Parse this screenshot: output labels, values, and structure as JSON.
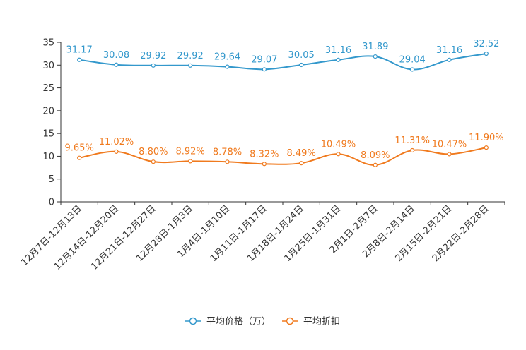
{
  "chart_data": {
    "type": "line",
    "categories": [
      "12月7日-12月13日",
      "12月14日-12月20日",
      "12月21日-12月27日",
      "12月28日-1月3日",
      "1月4日-1月10日",
      "1月11日-1月17日",
      "1月18日-1月24日",
      "1月25日-1月31日",
      "2月1日-2月7日",
      "2月8日-2月14日",
      "2月15日-2月21日",
      "2月22日-2月28日"
    ],
    "ylim": [
      0,
      35
    ],
    "yticks": [
      0,
      5,
      10,
      15,
      20,
      25,
      30,
      35
    ],
    "grid": false,
    "legend_position": "bottom-center",
    "series": [
      {
        "name": "平均价格（万）",
        "color": "#3398CC",
        "values": [
          31.17,
          30.08,
          29.92,
          29.92,
          29.64,
          29.07,
          30.05,
          31.16,
          31.89,
          29.04,
          31.16,
          32.52
        ],
        "labels": [
          "31.17",
          "30.08",
          "29.92",
          "29.92",
          "29.64",
          "29.07",
          "30.05",
          "31.16",
          "31.89",
          "29.04",
          "31.16",
          "32.52"
        ]
      },
      {
        "name": "平均折扣",
        "color": "#F07A1E",
        "values": [
          9.65,
          11.02,
          8.8,
          8.92,
          8.78,
          8.32,
          8.49,
          10.49,
          8.09,
          11.31,
          10.47,
          11.9
        ],
        "labels": [
          "9.65%",
          "11.02%",
          "8.80%",
          "8.92%",
          "8.78%",
          "8.32%",
          "8.49%",
          "10.49%",
          "8.09%",
          "11.31%",
          "10.47%",
          "11.90%"
        ]
      }
    ]
  }
}
